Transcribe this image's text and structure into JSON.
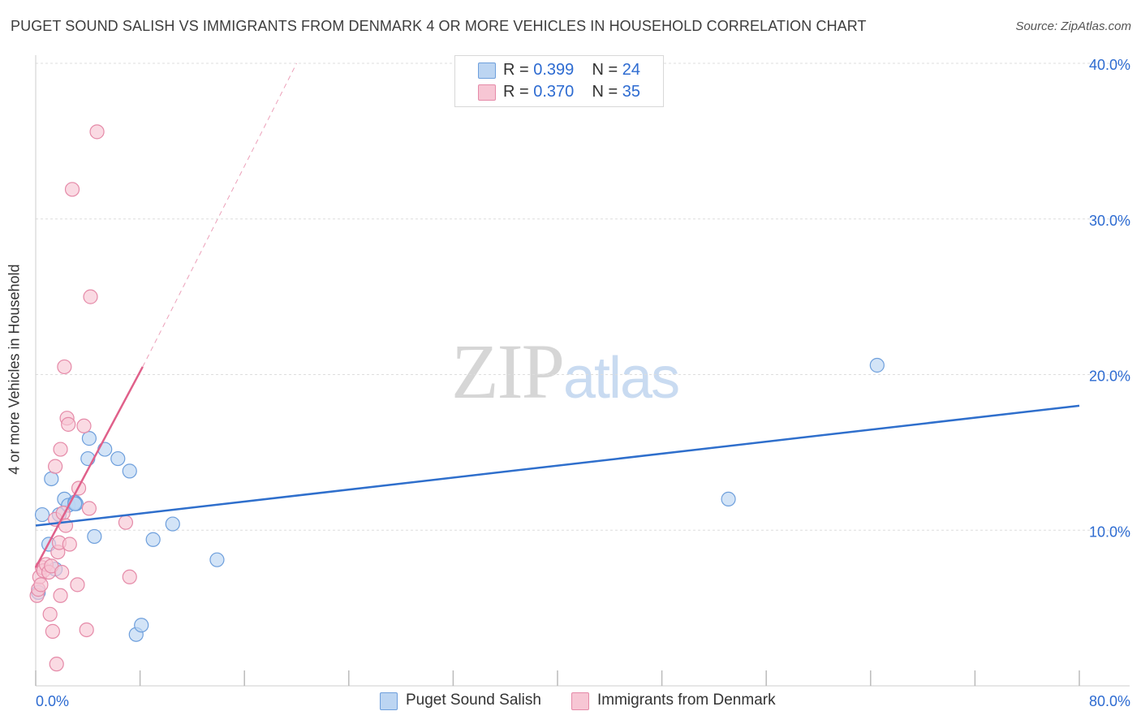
{
  "title": "PUGET SOUND SALISH VS IMMIGRANTS FROM DENMARK 4 OR MORE VEHICLES IN HOUSEHOLD CORRELATION CHART",
  "source": "Source: ZipAtlas.com",
  "watermark": {
    "zip": "ZIP",
    "atlas": "atlas"
  },
  "legend": {
    "rows": [
      {
        "r_label": "R = ",
        "r_value": "0.399",
        "n_label": "N = ",
        "n_value": "24"
      },
      {
        "r_label": "R = ",
        "r_value": "0.370",
        "n_label": "N = ",
        "n_value": "35"
      }
    ]
  },
  "colors": {
    "blue_fill": "#bcd5f2",
    "blue_stroke": "#6e9fdc",
    "blue_line": "#2f6fcc",
    "pink_fill": "#f7c6d4",
    "pink_stroke": "#e58aa8",
    "pink_line": "#e0608a",
    "tick_label": "#2d6bd1",
    "grid": "#dddddd"
  },
  "chart_data": {
    "type": "scatter",
    "title": "PUGET SOUND SALISH VS IMMIGRANTS FROM DENMARK 4 OR MORE VEHICLES IN HOUSEHOLD CORRELATION CHART",
    "xlabel": "",
    "ylabel": "4 or more Vehicles in Household",
    "xlim": [
      0,
      80
    ],
    "ylim": [
      0,
      40
    ],
    "x_tick_labels": [
      "0.0%",
      "80.0%"
    ],
    "y_ticks": [
      10,
      20,
      30,
      40
    ],
    "y_tick_labels": [
      "10.0%",
      "20.0%",
      "30.0%",
      "40.0%"
    ],
    "grid": true,
    "legend_position": "top-center",
    "series": [
      {
        "name": "Puget Sound Salish",
        "color": "#6e9fdc",
        "points": [
          [
            0.5,
            11.0
          ],
          [
            1.0,
            9.1
          ],
          [
            1.2,
            13.3
          ],
          [
            1.5,
            7.5
          ],
          [
            1.8,
            11.0
          ],
          [
            2.2,
            12.0
          ],
          [
            2.5,
            11.6
          ],
          [
            3.0,
            11.8
          ],
          [
            3.1,
            11.7
          ],
          [
            4.0,
            14.6
          ],
          [
            4.1,
            15.9
          ],
          [
            4.5,
            9.6
          ],
          [
            5.3,
            15.2
          ],
          [
            6.3,
            14.6
          ],
          [
            7.2,
            13.8
          ],
          [
            7.7,
            3.3
          ],
          [
            8.1,
            3.9
          ],
          [
            9.0,
            9.4
          ],
          [
            10.5,
            10.4
          ],
          [
            13.9,
            8.1
          ],
          [
            53.1,
            12.0
          ],
          [
            64.5,
            20.6
          ],
          [
            0.2,
            6.0
          ],
          [
            3.0,
            11.7
          ]
        ],
        "trend": {
          "x": [
            0,
            80
          ],
          "y": [
            10.3,
            18.0
          ]
        }
      },
      {
        "name": "Immigrants from Denmark",
        "color": "#e58aa8",
        "points": [
          [
            0.1,
            5.8
          ],
          [
            0.2,
            6.2
          ],
          [
            0.3,
            7.0
          ],
          [
            0.4,
            6.5
          ],
          [
            0.5,
            7.6
          ],
          [
            0.6,
            7.4
          ],
          [
            0.8,
            7.8
          ],
          [
            1.0,
            7.3
          ],
          [
            1.1,
            4.6
          ],
          [
            1.2,
            7.7
          ],
          [
            1.3,
            3.5
          ],
          [
            1.5,
            14.1
          ],
          [
            1.5,
            10.7
          ],
          [
            1.6,
            1.4
          ],
          [
            1.7,
            8.6
          ],
          [
            1.8,
            9.2
          ],
          [
            1.9,
            5.8
          ],
          [
            1.9,
            15.2
          ],
          [
            2.0,
            7.3
          ],
          [
            2.1,
            11.1
          ],
          [
            2.2,
            20.5
          ],
          [
            2.3,
            10.3
          ],
          [
            2.4,
            17.2
          ],
          [
            2.5,
            16.8
          ],
          [
            2.6,
            9.1
          ],
          [
            2.8,
            31.9
          ],
          [
            3.2,
            6.5
          ],
          [
            3.3,
            12.7
          ],
          [
            3.7,
            16.7
          ],
          [
            3.9,
            3.6
          ],
          [
            4.1,
            11.4
          ],
          [
            4.2,
            25.0
          ],
          [
            4.7,
            35.6
          ],
          [
            6.9,
            10.5
          ],
          [
            7.2,
            7.0
          ]
        ],
        "trend": {
          "x": [
            0,
            8.2
          ],
          "y": [
            7.6,
            20.5
          ]
        },
        "trend_extended": {
          "x": [
            8.2,
            20.0
          ],
          "y": [
            20.5,
            40.0
          ]
        }
      }
    ]
  }
}
